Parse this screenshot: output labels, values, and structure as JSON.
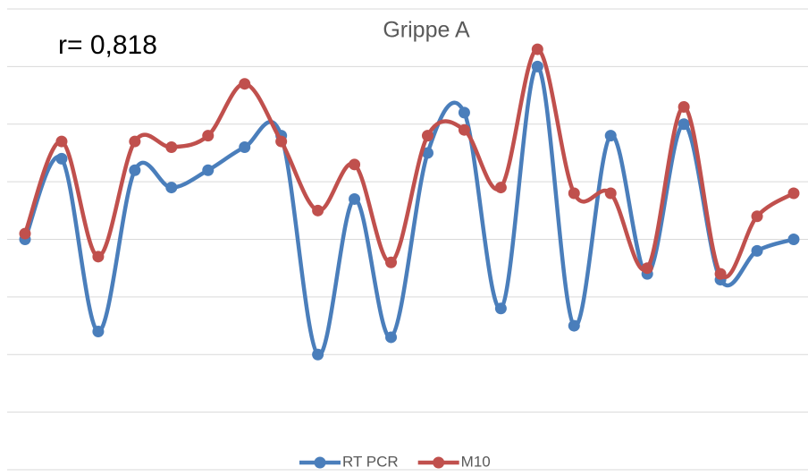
{
  "chart_data": {
    "type": "line",
    "title": "Grippe A",
    "annotation": "r= 0,818",
    "smooth": true,
    "grid": true,
    "legend": "bottom",
    "categories": [
      null,
      null,
      null,
      null,
      null,
      null,
      null,
      null,
      null,
      null,
      null,
      null,
      null,
      null,
      null,
      null,
      null,
      null,
      null,
      null,
      null,
      null
    ],
    "ylim": [
      0,
      8
    ],
    "yticks": [
      0,
      1,
      2,
      3,
      4,
      5,
      6,
      7,
      8
    ],
    "series": [
      {
        "name": "RT PCR",
        "color": "#4a7ebb",
        "values": [
          4.0,
          5.4,
          2.4,
          5.2,
          4.9,
          5.2,
          5.6,
          5.8,
          2.0,
          4.7,
          2.3,
          5.5,
          6.2,
          2.8,
          7.0,
          2.5,
          5.8,
          3.4,
          6.0,
          3.3,
          3.8,
          4.0
        ]
      },
      {
        "name": "M10",
        "color": "#c0504d",
        "values": [
          4.1,
          5.7,
          3.7,
          5.7,
          5.6,
          5.8,
          6.7,
          5.7,
          4.5,
          5.3,
          3.6,
          5.8,
          5.9,
          4.9,
          7.3,
          4.8,
          4.8,
          3.5,
          6.3,
          3.4,
          4.4,
          4.8
        ]
      }
    ]
  }
}
